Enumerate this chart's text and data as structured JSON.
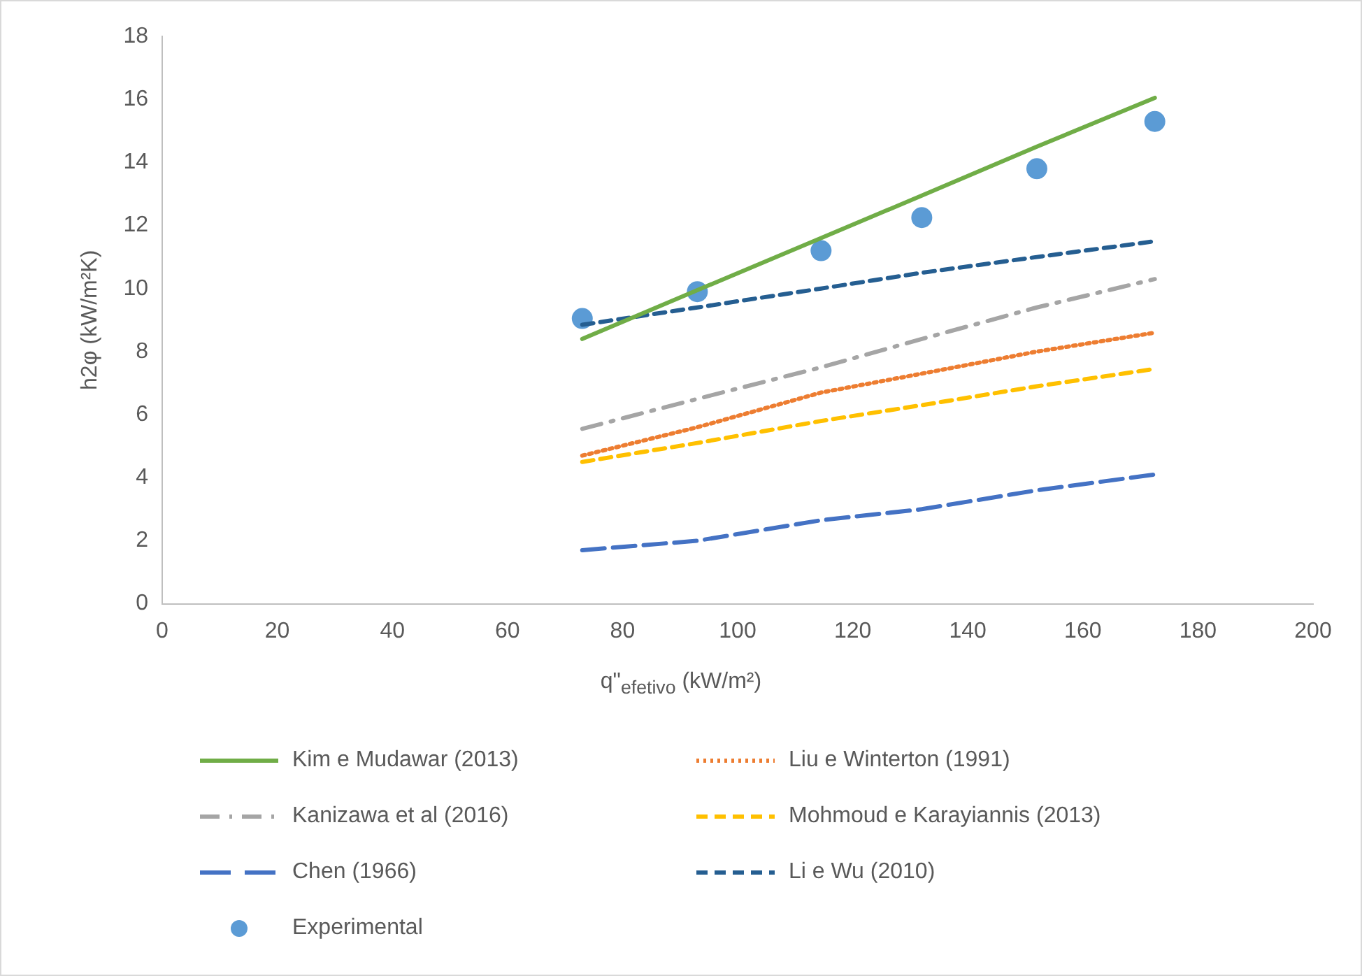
{
  "chart_data": {
    "type": "line",
    "xlabel": "q\"$_{efetivo}$ (kW/m²)",
    "ylabel": "h2φ (kW/m²K)",
    "xlim": [
      0,
      200
    ],
    "xticks": [
      0,
      20,
      40,
      60,
      80,
      100,
      120,
      140,
      160,
      180,
      200
    ],
    "ylim": [
      0,
      18
    ],
    "yticks": [
      0,
      2,
      4,
      6,
      8,
      10,
      12,
      14,
      16,
      18
    ],
    "grid": false,
    "legend": "bottom",
    "x": [
      73,
      93,
      114.5,
      132,
      152,
      172.5
    ],
    "series": [
      {
        "name": "Kim e Mudawar (2013)",
        "color": "#70ad47",
        "line_style": "solid",
        "values": [
          8.4,
          9.95,
          11.6,
          12.95,
          14.5,
          16.05
        ]
      },
      {
        "name": "Liu e Winterton (1991)",
        "color": "#ed7d31",
        "line_style": "dotted",
        "values": [
          4.7,
          5.6,
          6.7,
          7.3,
          8.0,
          8.6
        ]
      },
      {
        "name": "Kanizawa et al (2016)",
        "color": "#a5a5a5",
        "line_style": "dashdot",
        "values": [
          5.55,
          6.5,
          7.5,
          8.4,
          9.4,
          10.3
        ]
      },
      {
        "name": "Mohmoud e Karayiannis (2013)",
        "color": "#ffc000",
        "line_style": "dashed",
        "values": [
          4.5,
          5.1,
          5.8,
          6.3,
          6.9,
          7.45
        ]
      },
      {
        "name": "Chen (1966)",
        "color": "#4472c4",
        "line_style": "longdash",
        "values": [
          1.7,
          2.0,
          2.65,
          3.0,
          3.6,
          4.1
        ]
      },
      {
        "name": "Li e Wu (2010)",
        "color": "#255e91",
        "line_style": "dashed",
        "values": [
          8.85,
          9.4,
          10.0,
          10.5,
          11.0,
          11.5
        ]
      },
      {
        "name": "Experimental",
        "type": "scatter",
        "marker": "circle",
        "color": "#5b9bd5",
        "values": [
          9.05,
          9.9,
          11.2,
          12.25,
          13.8,
          15.3
        ]
      }
    ]
  }
}
